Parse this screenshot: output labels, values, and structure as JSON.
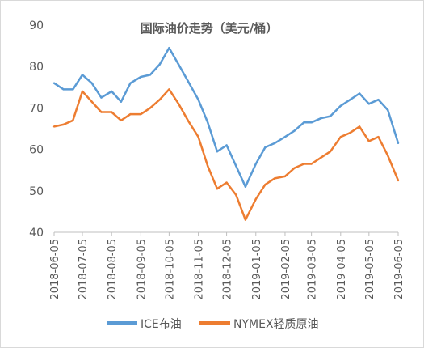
{
  "chart_data": {
    "type": "line",
    "title": "国际油价走势（美元/桶）",
    "xlabel": "",
    "ylabel": "",
    "ylim": [
      40,
      90
    ],
    "y_ticks": [
      "40",
      "50",
      "60",
      "70",
      "80",
      "90"
    ],
    "x_ticks": [
      "2018-06-05",
      "2018-07-05",
      "2018-08-05",
      "2018-09-05",
      "2018-10-05",
      "2018-11-05",
      "2018-12-05",
      "2019-01-05",
      "2019-02-05",
      "2019-03-05",
      "2019-04-05",
      "2019-05-05",
      "2019-06-05"
    ],
    "grid": false,
    "legend_position": "bottom",
    "x": [
      "2018-06-05",
      "2018-06-15",
      "2018-06-25",
      "2018-07-05",
      "2018-07-15",
      "2018-07-25",
      "2018-08-05",
      "2018-08-15",
      "2018-08-25",
      "2018-09-05",
      "2018-09-15",
      "2018-09-25",
      "2018-10-05",
      "2018-10-15",
      "2018-10-25",
      "2018-11-05",
      "2018-11-15",
      "2018-11-25",
      "2018-12-05",
      "2018-12-15",
      "2018-12-25",
      "2019-01-05",
      "2019-01-15",
      "2019-01-25",
      "2019-02-05",
      "2019-02-15",
      "2019-02-25",
      "2019-03-05",
      "2019-03-15",
      "2019-03-25",
      "2019-04-05",
      "2019-04-15",
      "2019-04-25",
      "2019-05-05",
      "2019-05-15",
      "2019-05-25",
      "2019-06-05"
    ],
    "series": [
      {
        "name": "ICE布油",
        "color": "#5b9bd5",
        "values": [
          76,
          74.5,
          74.5,
          78,
          76,
          72.5,
          74,
          71.5,
          76,
          77.5,
          78,
          80.5,
          84.5,
          80.5,
          76.5,
          72,
          66.5,
          59.5,
          61,
          56,
          51,
          56.5,
          60.5,
          61.5,
          63,
          64.5,
          66.5,
          66.5,
          67.5,
          68,
          70.5,
          72,
          73.5,
          71,
          72,
          69.5,
          61.5
        ]
      },
      {
        "name": "NYMEX轻质原油",
        "color": "#ed7d31",
        "values": [
          65.5,
          66,
          67,
          74,
          71.5,
          69,
          69,
          67,
          68.5,
          68.5,
          70,
          72,
          74.5,
          71,
          67,
          63,
          56,
          50.5,
          52,
          49,
          43,
          48,
          51.5,
          53,
          53.5,
          55.5,
          56.5,
          56.5,
          58,
          59.5,
          63,
          64,
          65.5,
          62,
          63,
          58.5,
          52.5
        ]
      }
    ]
  }
}
